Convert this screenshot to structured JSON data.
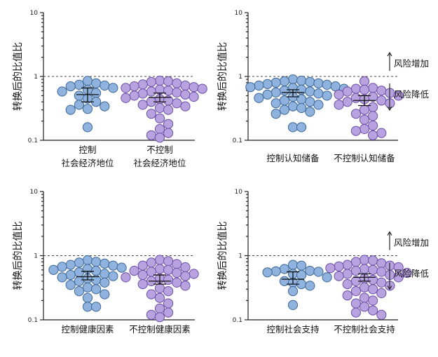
{
  "colors": {
    "group_a": "#8fb3de",
    "group_a_edge": "#3d6796",
    "group_b": "#b9a2e0",
    "group_b_edge": "#6b4fa6",
    "axis": "#222222"
  },
  "chart_data": [
    {
      "type": "scatter",
      "scale": "log",
      "ylim": [
        0.1,
        10
      ],
      "yticks": [
        "10",
        "1",
        "0.1"
      ],
      "ytick_values": [
        10,
        1,
        0.1
      ],
      "ylabel": "转换后的比值比",
      "reference_line": 1,
      "categories": [
        [
          "控制",
          "社会经济地位"
        ],
        [
          "不控制",
          "社会经济地位"
        ]
      ],
      "series": [
        {
          "name": "控制社会经济地位",
          "color_key": "a",
          "values": [
            0.85,
            0.78,
            0.74,
            0.72,
            0.7,
            0.66,
            0.62,
            0.58,
            0.55,
            0.5,
            0.45,
            0.4,
            0.36,
            0.34,
            0.31,
            0.3,
            0.16
          ],
          "mean": 0.52,
          "ci": [
            0.4,
            0.66
          ]
        },
        {
          "name": "不控制社会经济地位",
          "color_key": "b",
          "values": [
            0.86,
            0.84,
            0.82,
            0.78,
            0.75,
            0.72,
            0.7,
            0.68,
            0.66,
            0.64,
            0.62,
            0.6,
            0.58,
            0.56,
            0.54,
            0.52,
            0.5,
            0.48,
            0.46,
            0.44,
            0.42,
            0.4,
            0.38,
            0.36,
            0.34,
            0.32,
            0.3,
            0.26,
            0.22,
            0.18,
            0.15,
            0.13,
            0.12,
            0.11
          ],
          "mean": 0.47,
          "ci": [
            0.4,
            0.55
          ]
        }
      ],
      "annotations": []
    },
    {
      "type": "scatter",
      "scale": "log",
      "ylim": [
        0.1,
        10
      ],
      "yticks": [
        "10",
        "1",
        "0.1"
      ],
      "ytick_values": [
        10,
        1,
        0.1
      ],
      "ylabel": "转换后的比值比",
      "reference_line": 1,
      "categories": [
        [
          "控制认知储备"
        ],
        [
          "不控制认知储备"
        ]
      ],
      "series": [
        {
          "name": "控制认知储备",
          "color_key": "a",
          "values": [
            0.9,
            0.86,
            0.84,
            0.82,
            0.8,
            0.78,
            0.76,
            0.74,
            0.72,
            0.7,
            0.68,
            0.66,
            0.64,
            0.62,
            0.6,
            0.58,
            0.56,
            0.54,
            0.52,
            0.5,
            0.48,
            0.46,
            0.44,
            0.42,
            0.4,
            0.38,
            0.36,
            0.34,
            0.32,
            0.3,
            0.28,
            0.26,
            0.16,
            0.16
          ],
          "mean": 0.56,
          "ci": [
            0.48,
            0.62
          ]
        },
        {
          "name": "不控制认知储备",
          "color_key": "b",
          "values": [
            0.84,
            0.66,
            0.64,
            0.62,
            0.6,
            0.58,
            0.55,
            0.52,
            0.5,
            0.48,
            0.46,
            0.44,
            0.42,
            0.4,
            0.38,
            0.36,
            0.33,
            0.3,
            0.26,
            0.24,
            0.21,
            0.17,
            0.15,
            0.14,
            0.13,
            0.12
          ],
          "mean": 0.42,
          "ci": [
            0.35,
            0.5
          ]
        }
      ],
      "annotations": [
        "风险增加",
        "风险降低"
      ]
    },
    {
      "type": "scatter",
      "scale": "log",
      "ylim": [
        0.1,
        10
      ],
      "yticks": [
        "10",
        "1",
        "0.1"
      ],
      "ytick_values": [
        10,
        1,
        0.1
      ],
      "ylabel": "转换后的比值比",
      "reference_line": 1,
      "categories": [
        [
          "控制健康因素"
        ],
        [
          "不控制健康因素"
        ]
      ],
      "series": [
        {
          "name": "控制健康因素",
          "color_key": "a",
          "values": [
            0.85,
            0.8,
            0.78,
            0.75,
            0.72,
            0.7,
            0.67,
            0.65,
            0.62,
            0.6,
            0.58,
            0.55,
            0.52,
            0.5,
            0.48,
            0.46,
            0.44,
            0.42,
            0.4,
            0.38,
            0.35,
            0.32,
            0.3,
            0.28,
            0.25,
            0.22,
            0.16,
            0.16
          ],
          "mean": 0.47,
          "ci": [
            0.42,
            0.57
          ]
        },
        {
          "name": "不控制健康因素",
          "color_key": "b",
          "values": [
            0.86,
            0.82,
            0.78,
            0.74,
            0.7,
            0.66,
            0.62,
            0.6,
            0.58,
            0.56,
            0.54,
            0.52,
            0.5,
            0.48,
            0.46,
            0.44,
            0.42,
            0.4,
            0.38,
            0.36,
            0.34,
            0.31,
            0.28,
            0.25,
            0.22,
            0.18,
            0.15,
            0.13,
            0.12,
            0.11
          ],
          "mean": 0.4,
          "ci": [
            0.36,
            0.5
          ]
        }
      ],
      "annotations": []
    },
    {
      "type": "scatter",
      "scale": "log",
      "ylim": [
        0.1,
        10
      ],
      "yticks": [
        "10",
        "1",
        "0.1"
      ],
      "ytick_values": [
        10,
        1,
        0.1
      ],
      "ylabel": "转换后的比值比",
      "reference_line": 1,
      "categories": [
        [
          "控制社会支持"
        ],
        [
          "不控制社会支持"
        ]
      ],
      "series": [
        {
          "name": "控制社会支持",
          "color_key": "a",
          "values": [
            0.72,
            0.7,
            0.62,
            0.58,
            0.57,
            0.56,
            0.55,
            0.52,
            0.5,
            0.46,
            0.4,
            0.38,
            0.36,
            0.34,
            0.28,
            0.17
          ],
          "mean": 0.43,
          "ci": [
            0.36,
            0.56
          ]
        },
        {
          "name": "不控制社会支持",
          "color_key": "b",
          "values": [
            0.86,
            0.84,
            0.8,
            0.76,
            0.72,
            0.7,
            0.68,
            0.66,
            0.64,
            0.62,
            0.6,
            0.58,
            0.56,
            0.54,
            0.52,
            0.5,
            0.48,
            0.46,
            0.44,
            0.42,
            0.4,
            0.38,
            0.36,
            0.34,
            0.32,
            0.3,
            0.28,
            0.26,
            0.24,
            0.22,
            0.2,
            0.18,
            0.16,
            0.14,
            0.13,
            0.12
          ],
          "mean": 0.46,
          "ci": [
            0.4,
            0.52
          ]
        }
      ],
      "annotations": [
        "风险增加",
        "风险降低"
      ]
    }
  ]
}
